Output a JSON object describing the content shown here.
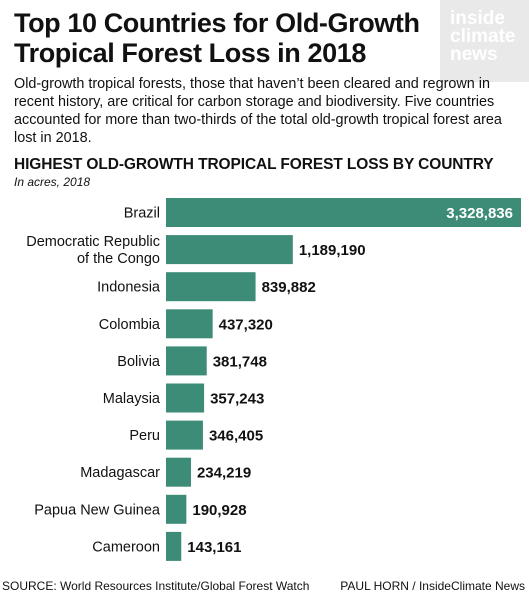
{
  "title": "Top 10 Countries for Old-Growth Tropical Forest Loss in 2018",
  "logo": {
    "line1": "inside",
    "line2": "climate",
    "line3": "news"
  },
  "intro": "Old-growth tropical forests, those that haven’t been cleared and regrown in recent history, are critical for carbon storage and biodiversity. Five countries accounted for more than two-thirds of the total old-growth tropical forest area lost in 2018.",
  "chart_heading": "HIGHEST OLD-GROWTH TROPICAL FOREST LOSS BY COUNTRY",
  "chart_subheading": "In acres, 2018",
  "colors": {
    "bar": "#3d8c78",
    "text": "#111111",
    "value_inside": "#ffffff"
  },
  "chart_data": {
    "type": "bar",
    "orientation": "horizontal",
    "categories": [
      "Brazil",
      "Democratic Republic of the Congo",
      "Indonesia",
      "Colombia",
      "Bolivia",
      "Malaysia",
      "Peru",
      "Madagascar",
      "Papua New Guinea",
      "Cameroon"
    ],
    "category_lines": [
      [
        "Brazil"
      ],
      [
        "Democratic Republic",
        "of the Congo"
      ],
      [
        "Indonesia"
      ],
      [
        "Colombia"
      ],
      [
        "Bolivia"
      ],
      [
        "Malaysia"
      ],
      [
        "Peru"
      ],
      [
        "Madagascar"
      ],
      [
        "Papua New Guinea"
      ],
      [
        "Cameroon"
      ]
    ],
    "values": [
      3328836,
      1189190,
      839882,
      437320,
      381748,
      357243,
      346405,
      234219,
      190928,
      143161
    ],
    "value_labels": [
      "3,328,836",
      "1,189,190",
      "839,882",
      "437,320",
      "381,748",
      "357,243",
      "346,405",
      "234,219",
      "190,928",
      "143,161"
    ],
    "title": "HIGHEST OLD-GROWTH TROPICAL FOREST LOSS BY COUNTRY",
    "subtitle": "In acres, 2018",
    "xlim": [
      0,
      3328836
    ],
    "grid": false,
    "legend": "none"
  },
  "footer": {
    "source": "SOURCE: World Resources Institute/Global Forest Watch",
    "credit": "PAUL HORN / InsideClimate News"
  }
}
